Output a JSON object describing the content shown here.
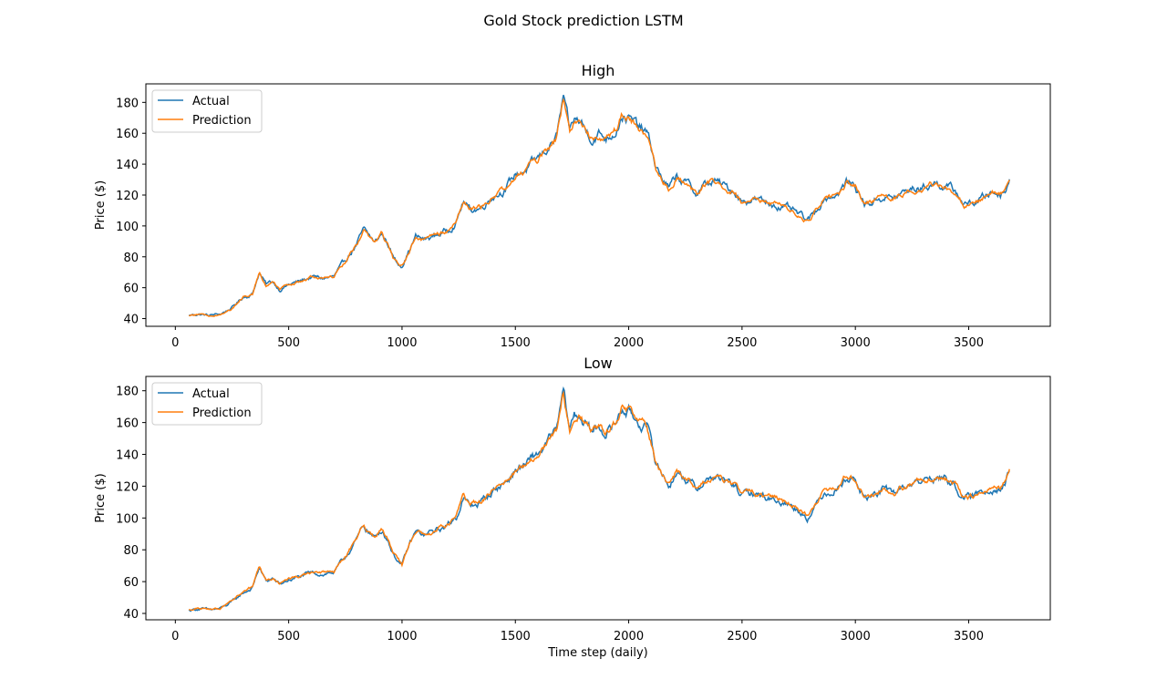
{
  "figure": {
    "suptitle": "Gold Stock prediction LSTM",
    "xlabel": "Time step (daily)"
  },
  "colors": {
    "actual": "#1f77b4",
    "prediction": "#ff7f0e",
    "axes": "#000000",
    "legend_border": "#cccccc",
    "background": "#ffffff"
  },
  "chart_data": [
    {
      "type": "line",
      "title": "High",
      "xlabel": "",
      "ylabel": "Price ($)",
      "xlim": [
        -130,
        3860
      ],
      "ylim": [
        35,
        192
      ],
      "xticks": [
        0,
        500,
        1000,
        1500,
        2000,
        2500,
        3000,
        3500
      ],
      "yticks": [
        40,
        60,
        80,
        100,
        120,
        140,
        160,
        180
      ],
      "grid": false,
      "legend": "upper-left",
      "x_range": [
        60,
        3680
      ],
      "series": [
        {
          "name": "Actual",
          "offset": 0.0,
          "noise": 1.6
        },
        {
          "name": "Prediction",
          "offset": -0.3,
          "noise": 1.1
        }
      ],
      "anchors": [
        [
          60,
          42
        ],
        [
          100,
          43
        ],
        [
          150,
          42
        ],
        [
          200,
          43
        ],
        [
          250,
          47
        ],
        [
          300,
          54
        ],
        [
          340,
          56
        ],
        [
          370,
          70
        ],
        [
          400,
          62
        ],
        [
          430,
          64
        ],
        [
          460,
          59
        ],
        [
          500,
          62
        ],
        [
          550,
          64
        ],
        [
          600,
          67
        ],
        [
          650,
          66
        ],
        [
          700,
          67
        ],
        [
          740,
          75
        ],
        [
          770,
          82
        ],
        [
          800,
          88
        ],
        [
          830,
          97
        ],
        [
          850,
          94
        ],
        [
          880,
          89
        ],
        [
          910,
          95
        ],
        [
          940,
          88
        ],
        [
          960,
          80
        ],
        [
          980,
          76
        ],
        [
          1000,
          75
        ],
        [
          1030,
          84
        ],
        [
          1060,
          93
        ],
        [
          1100,
          91
        ],
        [
          1150,
          94
        ],
        [
          1200,
          97
        ],
        [
          1240,
          103
        ],
        [
          1270,
          116
        ],
        [
          1300,
          110
        ],
        [
          1350,
          112
        ],
        [
          1400,
          120
        ],
        [
          1430,
          122
        ],
        [
          1460,
          125
        ],
        [
          1500,
          133
        ],
        [
          1550,
          137
        ],
        [
          1600,
          143
        ],
        [
          1640,
          150
        ],
        [
          1680,
          157
        ],
        [
          1700,
          172
        ],
        [
          1710,
          183
        ],
        [
          1720,
          176
        ],
        [
          1740,
          160
        ],
        [
          1760,
          168
        ],
        [
          1790,
          167
        ],
        [
          1810,
          162
        ],
        [
          1840,
          157
        ],
        [
          1870,
          160
        ],
        [
          1900,
          157
        ],
        [
          1940,
          162
        ],
        [
          1970,
          172
        ],
        [
          2000,
          170
        ],
        [
          2040,
          164
        ],
        [
          2080,
          160
        ],
        [
          2100,
          150
        ],
        [
          2120,
          138
        ],
        [
          2150,
          130
        ],
        [
          2180,
          124
        ],
        [
          2210,
          132
        ],
        [
          2260,
          127
        ],
        [
          2300,
          121
        ],
        [
          2330,
          126
        ],
        [
          2380,
          129
        ],
        [
          2430,
          125
        ],
        [
          2470,
          122
        ],
        [
          2500,
          116
        ],
        [
          2550,
          118
        ],
        [
          2600,
          115
        ],
        [
          2650,
          114
        ],
        [
          2700,
          111
        ],
        [
          2740,
          108
        ],
        [
          2790,
          103
        ],
        [
          2820,
          108
        ],
        [
          2860,
          118
        ],
        [
          2900,
          120
        ],
        [
          2930,
          122
        ],
        [
          2960,
          128
        ],
        [
          3000,
          126
        ],
        [
          3040,
          114
        ],
        [
          3080,
          116
        ],
        [
          3120,
          119
        ],
        [
          3170,
          118
        ],
        [
          3210,
          121
        ],
        [
          3250,
          124
        ],
        [
          3300,
          125
        ],
        [
          3350,
          128
        ],
        [
          3400,
          126
        ],
        [
          3450,
          121
        ],
        [
          3480,
          114
        ],
        [
          3520,
          115
        ],
        [
          3560,
          118
        ],
        [
          3600,
          122
        ],
        [
          3640,
          121
        ],
        [
          3660,
          124
        ],
        [
          3680,
          131
        ]
      ]
    },
    {
      "type": "line",
      "title": "Low",
      "xlabel": "Time step (daily)",
      "ylabel": "Price ($)",
      "xlim": [
        -130,
        3860
      ],
      "ylim": [
        36,
        189
      ],
      "xticks": [
        0,
        500,
        1000,
        1500,
        2000,
        2500,
        3000,
        3500
      ],
      "yticks": [
        40,
        60,
        80,
        100,
        120,
        140,
        160,
        180
      ],
      "grid": false,
      "legend": "upper-left",
      "x_range": [
        60,
        3680
      ],
      "series": [
        {
          "name": "Actual",
          "offset": 0.0,
          "noise": 1.6
        },
        {
          "name": "Prediction",
          "offset": 0.3,
          "noise": 1.1
        }
      ],
      "anchors": [
        [
          60,
          42
        ],
        [
          100,
          43
        ],
        [
          150,
          42
        ],
        [
          200,
          43
        ],
        [
          250,
          47
        ],
        [
          300,
          53
        ],
        [
          340,
          56
        ],
        [
          370,
          69
        ],
        [
          400,
          60
        ],
        [
          430,
          62
        ],
        [
          460,
          58
        ],
        [
          500,
          61
        ],
        [
          550,
          63
        ],
        [
          600,
          65
        ],
        [
          650,
          65
        ],
        [
          700,
          66
        ],
        [
          740,
          73
        ],
        [
          770,
          80
        ],
        [
          800,
          86
        ],
        [
          830,
          95
        ],
        [
          850,
          92
        ],
        [
          880,
          87
        ],
        [
          910,
          93
        ],
        [
          940,
          86
        ],
        [
          960,
          78
        ],
        [
          980,
          74
        ],
        [
          1000,
          70
        ],
        [
          1030,
          82
        ],
        [
          1060,
          91
        ],
        [
          1100,
          89
        ],
        [
          1150,
          92
        ],
        [
          1200,
          95
        ],
        [
          1240,
          101
        ],
        [
          1270,
          113
        ],
        [
          1300,
          107
        ],
        [
          1350,
          110
        ],
        [
          1400,
          117
        ],
        [
          1430,
          120
        ],
        [
          1460,
          123
        ],
        [
          1500,
          130
        ],
        [
          1550,
          134
        ],
        [
          1600,
          140
        ],
        [
          1640,
          147
        ],
        [
          1680,
          154
        ],
        [
          1700,
          168
        ],
        [
          1710,
          180
        ],
        [
          1720,
          172
        ],
        [
          1740,
          156
        ],
        [
          1760,
          165
        ],
        [
          1790,
          164
        ],
        [
          1810,
          159
        ],
        [
          1840,
          154
        ],
        [
          1870,
          157
        ],
        [
          1900,
          154
        ],
        [
          1940,
          159
        ],
        [
          1970,
          169
        ],
        [
          2000,
          167
        ],
        [
          2040,
          161
        ],
        [
          2080,
          157
        ],
        [
          2100,
          147
        ],
        [
          2120,
          135
        ],
        [
          2150,
          127
        ],
        [
          2180,
          121
        ],
        [
          2210,
          129
        ],
        [
          2260,
          124
        ],
        [
          2300,
          118
        ],
        [
          2330,
          123
        ],
        [
          2380,
          126
        ],
        [
          2430,
          122
        ],
        [
          2470,
          120
        ],
        [
          2500,
          114
        ],
        [
          2550,
          116
        ],
        [
          2600,
          113
        ],
        [
          2650,
          112
        ],
        [
          2700,
          109
        ],
        [
          2740,
          106
        ],
        [
          2790,
          101
        ],
        [
          2820,
          106
        ],
        [
          2860,
          116
        ],
        [
          2900,
          118
        ],
        [
          2930,
          120
        ],
        [
          2960,
          126
        ],
        [
          3000,
          124
        ],
        [
          3040,
          112
        ],
        [
          3080,
          114
        ],
        [
          3120,
          117
        ],
        [
          3170,
          116
        ],
        [
          3210,
          119
        ],
        [
          3250,
          122
        ],
        [
          3300,
          123
        ],
        [
          3350,
          126
        ],
        [
          3400,
          124
        ],
        [
          3450,
          119
        ],
        [
          3480,
          112
        ],
        [
          3520,
          113
        ],
        [
          3560,
          116
        ],
        [
          3600,
          120
        ],
        [
          3640,
          119
        ],
        [
          3660,
          122
        ],
        [
          3680,
          129
        ]
      ]
    }
  ]
}
